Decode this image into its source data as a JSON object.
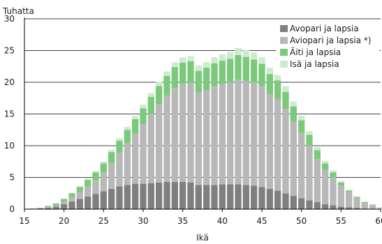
{
  "chart_data": {
    "type": "bar",
    "stacked": true,
    "title": "",
    "ylabel": "Tuhatta",
    "xlabel": "Ikä",
    "xlim": [
      15,
      60
    ],
    "ylim": [
      0,
      30
    ],
    "xticks": [
      "15",
      "20",
      "25",
      "30",
      "35",
      "40",
      "45",
      "50",
      "55",
      "60"
    ],
    "yticks": [
      "0",
      "5",
      "10",
      "15",
      "20",
      "25",
      "30"
    ],
    "grid": "horizontal",
    "legend_position": "top-right",
    "x": [
      16,
      17,
      18,
      19,
      20,
      21,
      22,
      23,
      24,
      25,
      26,
      27,
      28,
      29,
      30,
      31,
      32,
      33,
      34,
      35,
      36,
      37,
      38,
      39,
      40,
      41,
      42,
      43,
      44,
      45,
      46,
      47,
      48,
      49,
      50,
      51,
      52,
      53,
      54,
      55,
      56,
      57,
      58,
      59,
      60
    ],
    "series": [
      {
        "name": "Avopari ja lapsia",
        "color": "#7f7f7f",
        "values": [
          0.05,
          0.1,
          0.2,
          0.4,
          0.8,
          1.2,
          1.6,
          2.0,
          2.4,
          2.8,
          3.2,
          3.6,
          3.8,
          4.0,
          4.0,
          4.1,
          4.2,
          4.3,
          4.3,
          4.3,
          4.2,
          3.8,
          3.8,
          3.8,
          3.9,
          3.9,
          3.9,
          3.8,
          3.7,
          3.5,
          3.2,
          2.9,
          2.5,
          2.1,
          1.7,
          1.4,
          1.1,
          0.8,
          0.6,
          0.4,
          0.3,
          0.2,
          0.1,
          0.05,
          0.02
        ]
      },
      {
        "name": "Aviopari ja lapsia *)",
        "color": "#b8b8b8",
        "values": [
          0.0,
          0.02,
          0.1,
          0.2,
          0.4,
          0.7,
          1.1,
          1.6,
          2.2,
          3.0,
          4.1,
          5.3,
          6.6,
          7.9,
          9.4,
          10.9,
          12.3,
          13.6,
          14.8,
          15.5,
          15.7,
          14.6,
          15.0,
          15.6,
          15.8,
          16.1,
          16.5,
          16.4,
          16.3,
          15.9,
          14.9,
          14.4,
          13.3,
          11.7,
          10.3,
          8.6,
          6.8,
          5.4,
          4.4,
          3.3,
          2.3,
          1.5,
          0.9,
          0.6,
          0.2
        ]
      },
      {
        "name": "Äiti ja lapsia",
        "color": "#7bc97b",
        "values": [
          0.05,
          0.1,
          0.2,
          0.3,
          0.4,
          0.6,
          0.8,
          1.0,
          1.2,
          1.4,
          1.7,
          1.9,
          2.1,
          2.3,
          2.5,
          2.7,
          2.9,
          3.1,
          3.3,
          3.3,
          3.4,
          3.4,
          3.5,
          3.6,
          3.7,
          3.7,
          3.9,
          3.8,
          3.6,
          3.5,
          3.2,
          3.0,
          2.7,
          2.4,
          2.0,
          1.7,
          1.4,
          1.0,
          0.8,
          0.5,
          0.3,
          0.2,
          0.1,
          0.05,
          0.02
        ]
      },
      {
        "name": "Isä ja lapsia",
        "color": "#cdebcd",
        "values": [
          0.0,
          0.0,
          0.02,
          0.05,
          0.08,
          0.1,
          0.15,
          0.2,
          0.25,
          0.3,
          0.35,
          0.4,
          0.45,
          0.5,
          0.55,
          0.6,
          0.65,
          0.7,
          0.75,
          0.8,
          0.8,
          0.85,
          0.9,
          0.95,
          1.0,
          1.05,
          1.1,
          1.1,
          1.1,
          1.05,
          1.0,
          0.95,
          0.9,
          0.8,
          0.7,
          0.6,
          0.5,
          0.4,
          0.3,
          0.25,
          0.2,
          0.15,
          0.1,
          0.08,
          0.05
        ]
      }
    ]
  }
}
